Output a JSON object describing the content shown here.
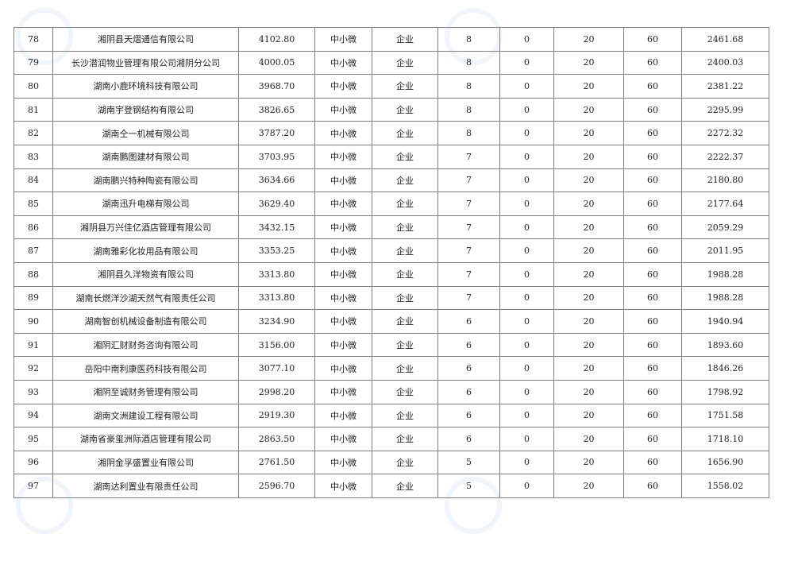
{
  "table": {
    "rows": [
      [
        "78",
        "湘阴县天熠通信有限公司",
        "4102.80",
        "中小微",
        "企业",
        "8",
        "0",
        "20",
        "60",
        "2461.68"
      ],
      [
        "79",
        "长沙潜润物业管理有限公司湘阴分公司",
        "4000.05",
        "中小微",
        "企业",
        "8",
        "0",
        "20",
        "60",
        "2400.03"
      ],
      [
        "80",
        "湖南小鹿环境科技有限公司",
        "3968.70",
        "中小微",
        "企业",
        "8",
        "0",
        "20",
        "60",
        "2381.22"
      ],
      [
        "81",
        "湖南宇登钢结构有限公司",
        "3826.65",
        "中小微",
        "企业",
        "8",
        "0",
        "20",
        "60",
        "2295.99"
      ],
      [
        "82",
        "湖南仝一机械有限公司",
        "3787.20",
        "中小微",
        "企业",
        "8",
        "0",
        "20",
        "60",
        "2272.32"
      ],
      [
        "83",
        "湖南鹏图建材有限公司",
        "3703.95",
        "中小微",
        "企业",
        "7",
        "0",
        "20",
        "60",
        "2222.37"
      ],
      [
        "84",
        "湖南鹏兴特种陶瓷有限公司",
        "3634.66",
        "中小微",
        "企业",
        "7",
        "0",
        "20",
        "60",
        "2180.80"
      ],
      [
        "85",
        "湖南迅升电梯有限公司",
        "3629.40",
        "中小微",
        "企业",
        "7",
        "0",
        "20",
        "60",
        "2177.64"
      ],
      [
        "86",
        "湘阴县万兴佳亿酒店管理有限公司",
        "3432.15",
        "中小微",
        "企业",
        "7",
        "0",
        "20",
        "60",
        "2059.29"
      ],
      [
        "87",
        "湖南雅彩化妆用品有限公司",
        "3353.25",
        "中小微",
        "企业",
        "7",
        "0",
        "20",
        "60",
        "2011.95"
      ],
      [
        "88",
        "湘阴县久洋物资有限公司",
        "3313.80",
        "中小微",
        "企业",
        "7",
        "0",
        "20",
        "60",
        "1988.28"
      ],
      [
        "89",
        "湖南长燃洋沙湖天然气有限责任公司",
        "3313.80",
        "中小微",
        "企业",
        "7",
        "0",
        "20",
        "60",
        "1988.28"
      ],
      [
        "90",
        "湖南智创机械设备制造有限公司",
        "3234.90",
        "中小微",
        "企业",
        "6",
        "0",
        "20",
        "60",
        "1940.94"
      ],
      [
        "91",
        "湘阴汇财财务咨询有限公司",
        "3156.00",
        "中小微",
        "企业",
        "6",
        "0",
        "20",
        "60",
        "1893.60"
      ],
      [
        "92",
        "岳阳中南利康医药科技有限公司",
        "3077.10",
        "中小微",
        "企业",
        "6",
        "0",
        "20",
        "60",
        "1846.26"
      ],
      [
        "93",
        "湘阴至诚财务管理有限公司",
        "2998.20",
        "中小微",
        "企业",
        "6",
        "0",
        "20",
        "60",
        "1798.92"
      ],
      [
        "94",
        "湖南文洲建设工程有限公司",
        "2919.30",
        "中小微",
        "企业",
        "6",
        "0",
        "20",
        "60",
        "1751.58"
      ],
      [
        "95",
        "湖南省豪玺洲际酒店管理有限公司",
        "2863.50",
        "中小微",
        "企业",
        "6",
        "0",
        "20",
        "60",
        "1718.10"
      ],
      [
        "96",
        "湘阴金孚盛置业有限公司",
        "2761.50",
        "中小微",
        "企业",
        "5",
        "0",
        "20",
        "60",
        "1656.90"
      ],
      [
        "97",
        "湖南达利置业有限责任公司",
        "2596.70",
        "中小微",
        "企业",
        "5",
        "0",
        "20",
        "60",
        "1558.02"
      ]
    ]
  },
  "watermark": {
    "text": "湖南社保"
  }
}
